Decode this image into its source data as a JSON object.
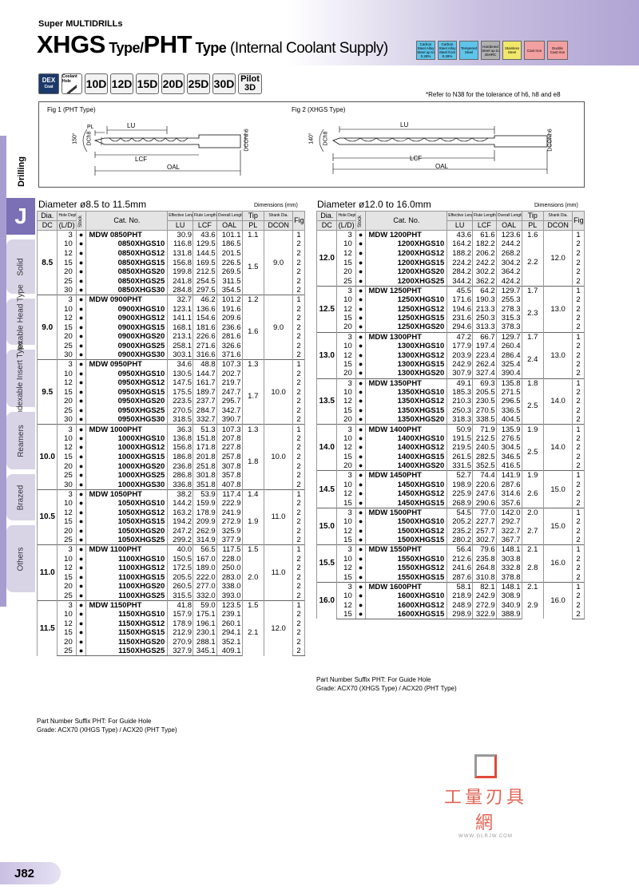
{
  "header": {
    "subtitle": "Super MULTIDRILLs",
    "title_xhgs": "XHGS",
    "title_type1": " Type/",
    "title_pht": "PHT",
    "title_type2": " Type",
    "title_rest": " (Internal Coolant Supply)"
  },
  "materials": [
    {
      "label": "Carbon Steel Alloy Steel up to 0.28%",
      "color": "#5ec4ea"
    },
    {
      "label": "Carbon Steel Alloy Steel from 0.28%",
      "color": "#5ec4ea"
    },
    {
      "label": "Tempered Steel",
      "color": "#5ec4ea"
    },
    {
      "label": "Hardened Steel up to 45HRC",
      "color": "#b0b0b0"
    },
    {
      "label": "Stainless Steel",
      "color": "#f1e86a"
    },
    {
      "label": "Cast Iron",
      "color": "#f2a0a0"
    },
    {
      "label": "Ductile Cast Iron",
      "color": "#f2a0a0"
    }
  ],
  "icons": {
    "dex": "DEX",
    "dex_sub": "Coat",
    "coolant": "Coolant Hole",
    "depths": [
      "10D",
      "12D",
      "15D",
      "20D",
      "25D",
      "30D"
    ],
    "pilot1": "Pilot",
    "pilot2": "3D"
  },
  "note": "*Refer to N38 for the tolerance of h6, h8 and e8",
  "fig1": {
    "title": "Fig 1 (PHT Type)",
    "lu": "LU",
    "pl": "PL",
    "lcf": "LCF",
    "oal": "OAL",
    "dc": "DCh8",
    "dcon": "DCONh6",
    "angle": "150°"
  },
  "fig2": {
    "title": "Fig 2 (XHGS Type)",
    "lu": "LU",
    "lcf": "LCF",
    "oal": "OAL",
    "dc": "DCh8",
    "dcon": "DCONh6",
    "angle": "140°"
  },
  "sidebar": {
    "drilling": "Drilling",
    "j": "J",
    "tabs": [
      "Solid",
      "Indexable Head Type",
      "Indexable Insert Type",
      "Reamers",
      "Brazed",
      "Others"
    ]
  },
  "left": {
    "section": "Diameter ø8.5 to 11.5mm",
    "dims": "Dimensions (mm)",
    "headers": {
      "dia": "Dia.",
      "dc": "DC",
      "hd": "Hole Depth",
      "ld": "(L/D)",
      "stock": "Stock",
      "cat": "Cat. No.",
      "el": "Effective Length",
      "lu": "LU",
      "fl": "Flute Length",
      "lcf": "LCF",
      "ol": "Overall Length",
      "oal": "OAL",
      "tip": "Tip",
      "pl": "PL",
      "sd": "Shank Dia.",
      "dcon": "DCON",
      "fig": "Fig"
    },
    "groups": [
      {
        "dc": "8.5",
        "pl": "1.1",
        "pl2": "1.5",
        "dcon": "9.0",
        "rows": [
          [
            "3",
            "MDW 0850PHT",
            "30.9",
            "43.6",
            "101.1",
            "1"
          ],
          [
            "10",
            "0850XHGS10",
            "116.8",
            "129.5",
            "186.5",
            "2"
          ],
          [
            "12",
            "0850XHGS12",
            "131.8",
            "144.5",
            "201.5",
            "2"
          ],
          [
            "15",
            "0850XHGS15",
            "156.8",
            "169.5",
            "226.5",
            "2"
          ],
          [
            "20",
            "0850XHGS20",
            "199.8",
            "212.5",
            "269.5",
            "2"
          ],
          [
            "25",
            "0850XHGS25",
            "241.8",
            "254.5",
            "311.5",
            "2"
          ],
          [
            "30",
            "0850XHGS30",
            "284.8",
            "297.5",
            "354.5",
            "2"
          ]
        ]
      },
      {
        "dc": "9.0",
        "pl": "1.2",
        "pl2": "1.6",
        "dcon": "9.0",
        "rows": [
          [
            "3",
            "MDW 0900PHT",
            "32.7",
            "46.2",
            "101.2",
            "1"
          ],
          [
            "10",
            "0900XHGS10",
            "123.1",
            "136.6",
            "191.6",
            "2"
          ],
          [
            "12",
            "0900XHGS12",
            "141.1",
            "154.6",
            "209.6",
            "2"
          ],
          [
            "15",
            "0900XHGS15",
            "168.1",
            "181.6",
            "236.6",
            "2"
          ],
          [
            "20",
            "0900XHGS20",
            "213.1",
            "226.6",
            "281.6",
            "2"
          ],
          [
            "25",
            "0900XHGS25",
            "258.1",
            "271.6",
            "326.6",
            "2"
          ],
          [
            "30",
            "0900XHGS30",
            "303.1",
            "316.6",
            "371.6",
            "2"
          ]
        ]
      },
      {
        "dc": "9.5",
        "pl": "1.3",
        "pl2": "1.7",
        "dcon": "10.0",
        "rows": [
          [
            "3",
            "MDW 0950PHT",
            "34.6",
            "48.8",
            "107.3",
            "1"
          ],
          [
            "10",
            "0950XHGS10",
            "130.5",
            "144.7",
            "202.7",
            "2"
          ],
          [
            "12",
            "0950XHGS12",
            "147.5",
            "161.7",
            "219.7",
            "2"
          ],
          [
            "15",
            "0950XHGS15",
            "175.5",
            "189.7",
            "247.7",
            "2"
          ],
          [
            "20",
            "0950XHGS20",
            "223.5",
            "237.7",
            "295.7",
            "2"
          ],
          [
            "25",
            "0950XHGS25",
            "270.5",
            "284.7",
            "342.7",
            "2"
          ],
          [
            "30",
            "0950XHGS30",
            "318.5",
            "332.7",
            "390.7",
            "2"
          ]
        ]
      },
      {
        "dc": "10.0",
        "pl": "1.3",
        "pl2": "1.8",
        "dcon": "10.0",
        "rows": [
          [
            "3",
            "MDW 1000PHT",
            "36.3",
            "51.3",
            "107.3",
            "1"
          ],
          [
            "10",
            "1000XHGS10",
            "136.8",
            "151.8",
            "207.8",
            "2"
          ],
          [
            "12",
            "1000XHGS12",
            "156.8",
            "171.8",
            "227.8",
            "2"
          ],
          [
            "15",
            "1000XHGS15",
            "186.8",
            "201.8",
            "257.8",
            "2"
          ],
          [
            "20",
            "1000XHGS20",
            "236.8",
            "251.8",
            "307.8",
            "2"
          ],
          [
            "25",
            "1000XHGS25",
            "286.8",
            "301.8",
            "357.8",
            "2"
          ],
          [
            "30",
            "1000XHGS30",
            "336.8",
            "351.8",
            "407.8",
            "2"
          ]
        ]
      },
      {
        "dc": "10.5",
        "pl": "1.4",
        "pl2": "1.9",
        "dcon": "11.0",
        "rows": [
          [
            "3",
            "MDW 1050PHT",
            "38.2",
            "53.9",
            "117.4",
            "1"
          ],
          [
            "10",
            "1050XHGS10",
            "144.2",
            "159.9",
            "222.9",
            "2"
          ],
          [
            "12",
            "1050XHGS12",
            "163.2",
            "178.9",
            "241.9",
            "2"
          ],
          [
            "15",
            "1050XHGS15",
            "194.2",
            "209.9",
            "272.9",
            "2"
          ],
          [
            "20",
            "1050XHGS20",
            "247.2",
            "262.9",
            "325.9",
            "2"
          ],
          [
            "25",
            "1050XHGS25",
            "299.2",
            "314.9",
            "377.9",
            "2"
          ]
        ]
      },
      {
        "dc": "11.0",
        "pl": "1.5",
        "pl2": "2.0",
        "dcon": "11.0",
        "rows": [
          [
            "3",
            "MDW 1100PHT",
            "40.0",
            "56.5",
            "117.5",
            "1"
          ],
          [
            "10",
            "1100XHGS10",
            "150.5",
            "167.0",
            "228.0",
            "2"
          ],
          [
            "12",
            "1100XHGS12",
            "172.5",
            "189.0",
            "250.0",
            "2"
          ],
          [
            "15",
            "1100XHGS15",
            "205.5",
            "222.0",
            "283.0",
            "2"
          ],
          [
            "20",
            "1100XHGS20",
            "260.5",
            "277.0",
            "338.0",
            "2"
          ],
          [
            "25",
            "1100XHGS25",
            "315.5",
            "332.0",
            "393.0",
            "2"
          ]
        ]
      },
      {
        "dc": "11.5",
        "pl": "1.5",
        "pl2": "2.1",
        "dcon": "12.0",
        "rows": [
          [
            "3",
            "MDW 1150PHT",
            "41.8",
            "59.0",
            "123.5",
            "1"
          ],
          [
            "10",
            "1150XHGS10",
            "157.9",
            "175.1",
            "239.1",
            "2"
          ],
          [
            "12",
            "1150XHGS12",
            "178.9",
            "196.1",
            "260.1",
            "2"
          ],
          [
            "15",
            "1150XHGS15",
            "212.9",
            "230.1",
            "294.1",
            "2"
          ],
          [
            "20",
            "1150XHGS20",
            "270.9",
            "288.1",
            "352.1",
            "2"
          ],
          [
            "25",
            "1150XHGS25",
            "327.9",
            "345.1",
            "409.1",
            "2"
          ]
        ]
      }
    ],
    "foot1": "Part Number Suffix PHT: For Guide Hole",
    "foot2": "Grade: ACX70 (XHGS Type) / ACX20 (PHT Type)"
  },
  "right": {
    "section": "Diameter ø12.0 to 16.0mm",
    "dims": "Dimensions (mm)",
    "groups": [
      {
        "dc": "12.0",
        "pl": "1.6",
        "pl2": "2.2",
        "dcon": "12.0",
        "rows": [
          [
            "3",
            "MDW 1200PHT",
            "43.6",
            "61.6",
            "123.6",
            "1"
          ],
          [
            "10",
            "1200XHGS10",
            "164.2",
            "182.2",
            "244.2",
            "2"
          ],
          [
            "12",
            "1200XHGS12",
            "188.2",
            "206.2",
            "268.2",
            "2"
          ],
          [
            "15",
            "1200XHGS15",
            "224.2",
            "242.2",
            "304.2",
            "2"
          ],
          [
            "20",
            "1200XHGS20",
            "284.2",
            "302.2",
            "364.2",
            "2"
          ],
          [
            "25",
            "1200XHGS25",
            "344.2",
            "362.2",
            "424.2",
            "2"
          ]
        ]
      },
      {
        "dc": "12.5",
        "pl": "1.7",
        "pl2": "2.3",
        "dcon": "13.0",
        "rows": [
          [
            "3",
            "MDW 1250PHT",
            "45.5",
            "64.2",
            "129.7",
            "1"
          ],
          [
            "10",
            "1250XHGS10",
            "171.6",
            "190.3",
            "255.3",
            "2"
          ],
          [
            "12",
            "1250XHGS12",
            "194.6",
            "213.3",
            "278.3",
            "2"
          ],
          [
            "15",
            "1250XHGS15",
            "231.6",
            "250.3",
            "315.3",
            "2"
          ],
          [
            "20",
            "1250XHGS20",
            "294.6",
            "313.3",
            "378.3",
            "2"
          ]
        ]
      },
      {
        "dc": "13.0",
        "pl": "1.7",
        "pl2": "2.4",
        "dcon": "13.0",
        "rows": [
          [
            "3",
            "MDW 1300PHT",
            "47.2",
            "66.7",
            "129.7",
            "1"
          ],
          [
            "10",
            "1300XHGS10",
            "177.9",
            "197.4",
            "260.4",
            "2"
          ],
          [
            "12",
            "1300XHGS12",
            "203.9",
            "223.4",
            "286.4",
            "2"
          ],
          [
            "15",
            "1300XHGS15",
            "242.9",
            "262.4",
            "325.4",
            "2"
          ],
          [
            "20",
            "1300XHGS20",
            "307.9",
            "327.4",
            "390.4",
            "2"
          ]
        ]
      },
      {
        "dc": "13.5",
        "pl": "1.8",
        "pl2": "2.5",
        "dcon": "14.0",
        "rows": [
          [
            "3",
            "MDW 1350PHT",
            "49.1",
            "69.3",
            "135.8",
            "1"
          ],
          [
            "10",
            "1350XHGS10",
            "185.3",
            "205.5",
            "271.5",
            "2"
          ],
          [
            "12",
            "1350XHGS12",
            "210.3",
            "230.5",
            "296.5",
            "2"
          ],
          [
            "15",
            "1350XHGS15",
            "250.3",
            "270.5",
            "336.5",
            "2"
          ],
          [
            "20",
            "1350XHGS20",
            "318.3",
            "338.5",
            "404.5",
            "2"
          ]
        ]
      },
      {
        "dc": "14.0",
        "pl": "1.9",
        "pl2": "2.5",
        "dcon": "14.0",
        "rows": [
          [
            "3",
            "MDW 1400PHT",
            "50.9",
            "71.9",
            "135.9",
            "1"
          ],
          [
            "10",
            "1400XHGS10",
            "191.5",
            "212.5",
            "276.5",
            "2"
          ],
          [
            "12",
            "1400XHGS12",
            "219.5",
            "240.5",
            "304.5",
            "2"
          ],
          [
            "15",
            "1400XHGS15",
            "261.5",
            "282.5",
            "346.5",
            "2"
          ],
          [
            "20",
            "1400XHGS20",
            "331.5",
            "352.5",
            "416.5",
            "2"
          ]
        ]
      },
      {
        "dc": "14.5",
        "pl": "1.9",
        "pl2": "2.6",
        "dcon": "15.0",
        "rows": [
          [
            "3",
            "MDW 1450PHT",
            "52.7",
            "74.4",
            "141.9",
            "1"
          ],
          [
            "10",
            "1450XHGS10",
            "198.9",
            "220.6",
            "287.6",
            "2"
          ],
          [
            "12",
            "1450XHGS12",
            "225.9",
            "247.6",
            "314.6",
            "2"
          ],
          [
            "15",
            "1450XHGS15",
            "268.9",
            "290.6",
            "357.6",
            "2"
          ]
        ]
      },
      {
        "dc": "15.0",
        "pl": "2.0",
        "pl2": "2.7",
        "dcon": "15.0",
        "rows": [
          [
            "3",
            "MDW 1500PHT",
            "54.5",
            "77.0",
            "142.0",
            "1"
          ],
          [
            "10",
            "1500XHGS10",
            "205.2",
            "227.7",
            "292.7",
            "2"
          ],
          [
            "12",
            "1500XHGS12",
            "235.2",
            "257.7",
            "322.7",
            "2"
          ],
          [
            "15",
            "1500XHGS15",
            "280.2",
            "302.7",
            "367.7",
            "2"
          ]
        ]
      },
      {
        "dc": "15.5",
        "pl": "2.1",
        "pl2": "2.8",
        "dcon": "16.0",
        "rows": [
          [
            "3",
            "MDW 1550PHT",
            "56.4",
            "79.6",
            "148.1",
            "1"
          ],
          [
            "10",
            "1550XHGS10",
            "212.6",
            "235.8",
            "303.8",
            "2"
          ],
          [
            "12",
            "1550XHGS12",
            "241.6",
            "264.8",
            "332.8",
            "2"
          ],
          [
            "15",
            "1550XHGS15",
            "287.6",
            "310.8",
            "378.8",
            "2"
          ]
        ]
      },
      {
        "dc": "16.0",
        "pl": "2.1",
        "pl2": "2.9",
        "dcon": "16.0",
        "rows": [
          [
            "3",
            "MDW 1600PHT",
            "58.1",
            "82.1",
            "148.1",
            "1"
          ],
          [
            "10",
            "1600XHGS10",
            "218.9",
            "242.9",
            "308.9",
            "2"
          ],
          [
            "12",
            "1600XHGS12",
            "248.9",
            "272.9",
            "340.9",
            "2"
          ],
          [
            "15",
            "1600XHGS15",
            "298.9",
            "322.9",
            "388.9",
            "2"
          ]
        ]
      }
    ],
    "foot1": "Part Number Suffix PHT: For Guide Hole",
    "foot2": "Grade: ACX70 (XHGS Type) / ACX20 (PHT Type)"
  },
  "watermark": {
    "text": "工量刃具網",
    "url": "WWW.GLRJW.COM"
  },
  "page_number": "J82",
  "stock_symbol": "●"
}
